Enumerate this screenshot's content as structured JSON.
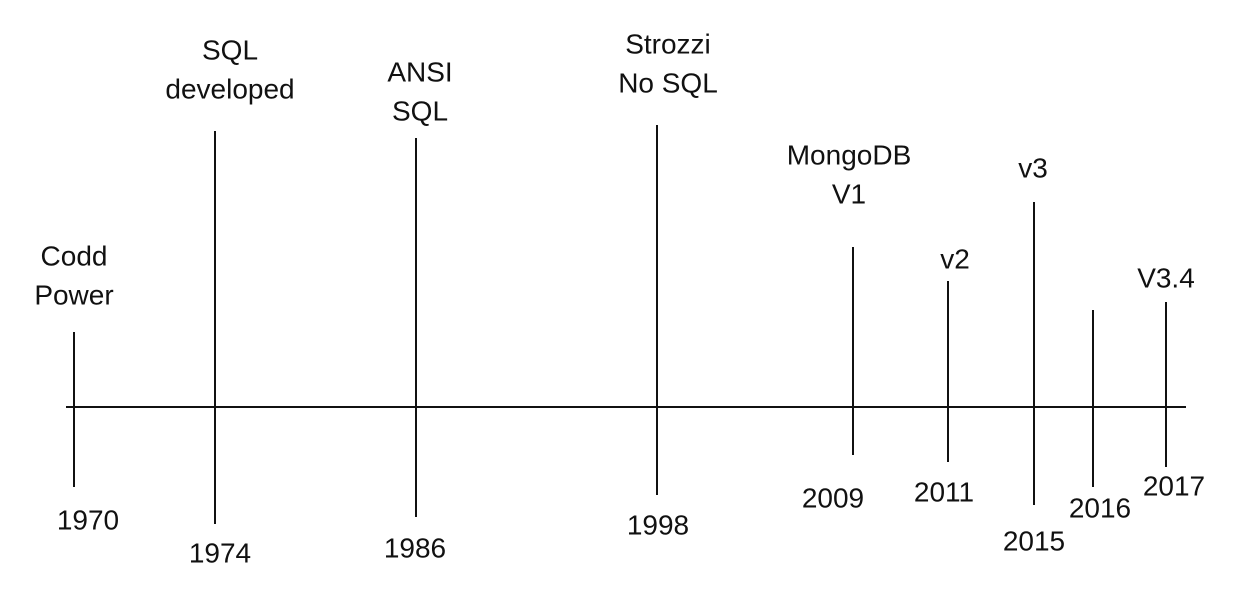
{
  "events": [
    {
      "year": "1970",
      "label": [
        "Codd",
        "Power"
      ]
    },
    {
      "year": "1974",
      "label": [
        "SQL",
        "developed"
      ]
    },
    {
      "year": "1986",
      "label": [
        "ANSI",
        "SQL"
      ]
    },
    {
      "year": "1998",
      "label": [
        "Strozzi",
        "No SQL"
      ]
    },
    {
      "year": "2009",
      "label": [
        "MongoDB",
        "V1"
      ]
    },
    {
      "year": "2011",
      "label": [
        "v2"
      ]
    },
    {
      "year": "2015",
      "label": [
        "v3"
      ]
    },
    {
      "year": "2016",
      "label": []
    },
    {
      "year": "2017",
      "label": [
        "V3.4"
      ]
    }
  ]
}
